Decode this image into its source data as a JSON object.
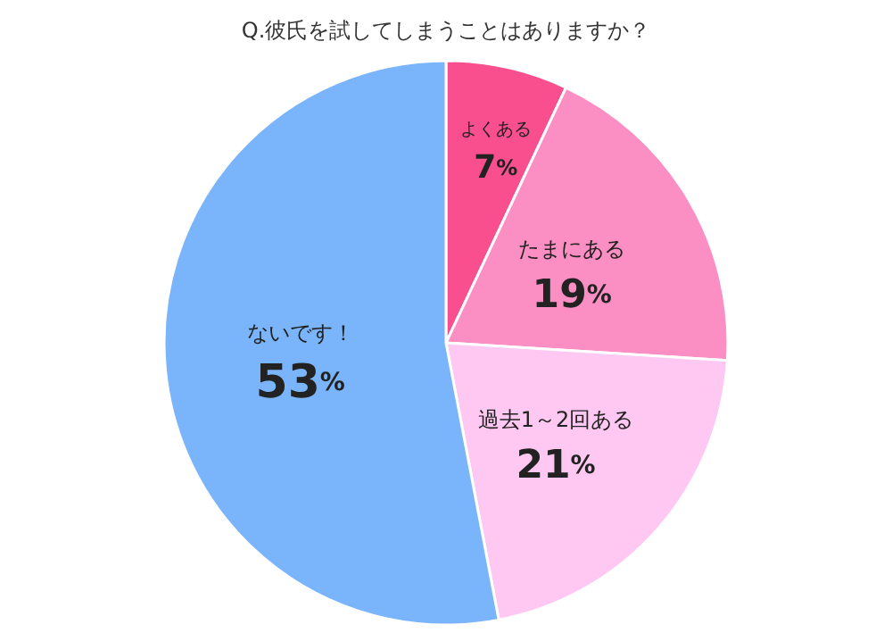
{
  "chart_data": {
    "type": "pie",
    "title": "Q.彼氏を試してしまうことはありますか？",
    "categories": [
      "よくある",
      "たまにある",
      "過去1～2回ある",
      "ないです！"
    ],
    "values": [
      7,
      19,
      21,
      53
    ],
    "value_labels": [
      "7%",
      "19%",
      "21%",
      "53%"
    ],
    "colors": [
      "#f94f8e",
      "#fb8fc3",
      "#ffc8f2",
      "#7ab5fb"
    ]
  }
}
